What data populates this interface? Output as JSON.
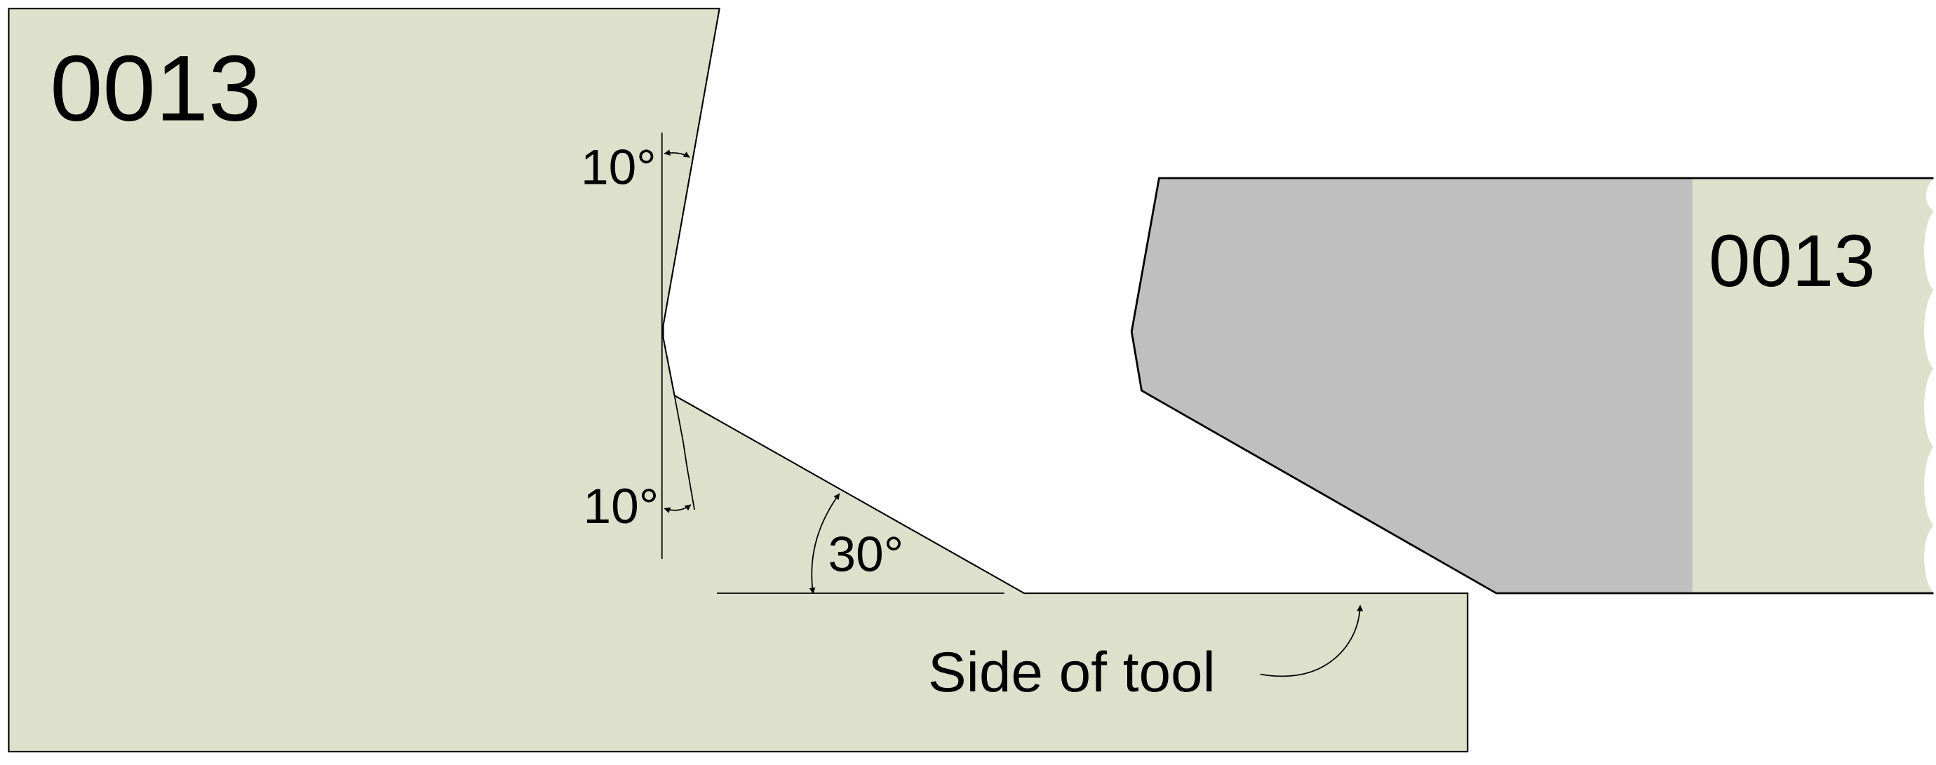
{
  "left_tool": {
    "code": "0013"
  },
  "right_tool": {
    "code": "0013"
  },
  "angles": {
    "upper": "10°",
    "lower": "10°",
    "side": "30°"
  },
  "callout": {
    "label": "Side of tool"
  },
  "colors": {
    "tool_body": "#dde1cb",
    "carbide_tip": "#bfbfbf",
    "outline": "#000000",
    "background": "#ffffff"
  }
}
